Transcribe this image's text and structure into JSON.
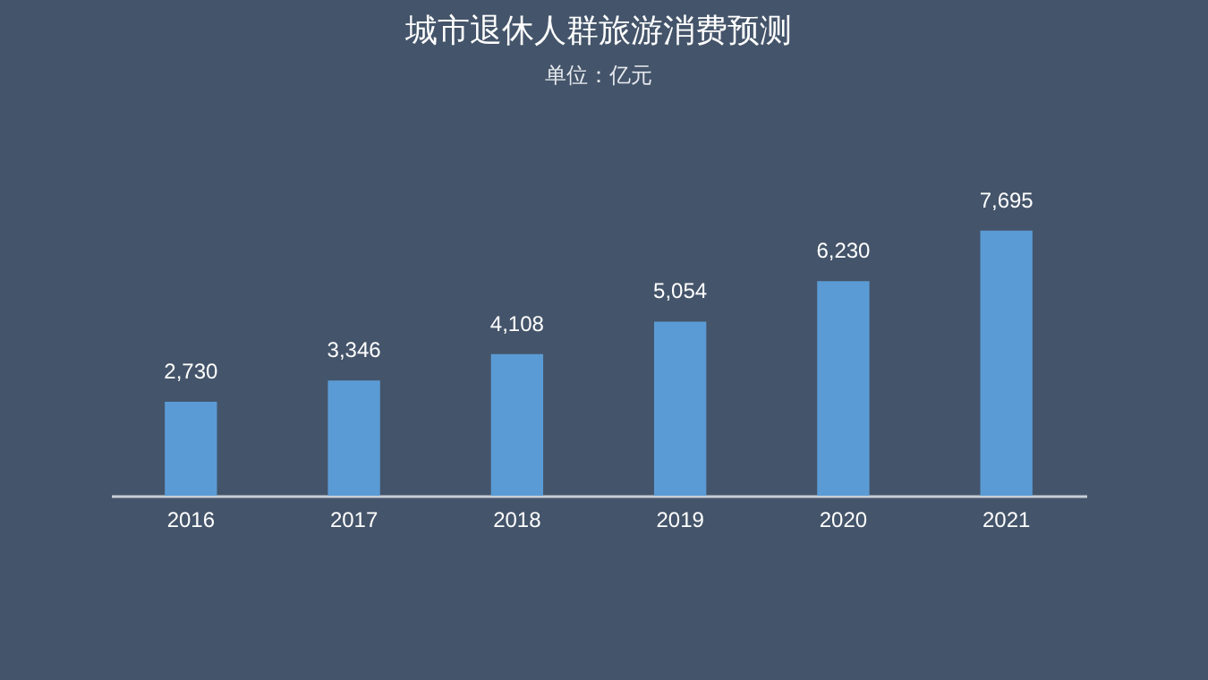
{
  "chart_data": {
    "type": "bar",
    "title": "城市退休人群旅游消费预测",
    "subtitle": "单位：亿元",
    "categories": [
      "2016",
      "2017",
      "2018",
      "2019",
      "2020",
      "2021"
    ],
    "values": [
      2730,
      3346,
      4108,
      5054,
      6230,
      7695
    ],
    "color": "#5b9bd5",
    "value_labels": [
      "2,730",
      "3,346",
      "4,108",
      "5,054",
      "6,230",
      "7,695"
    ]
  }
}
